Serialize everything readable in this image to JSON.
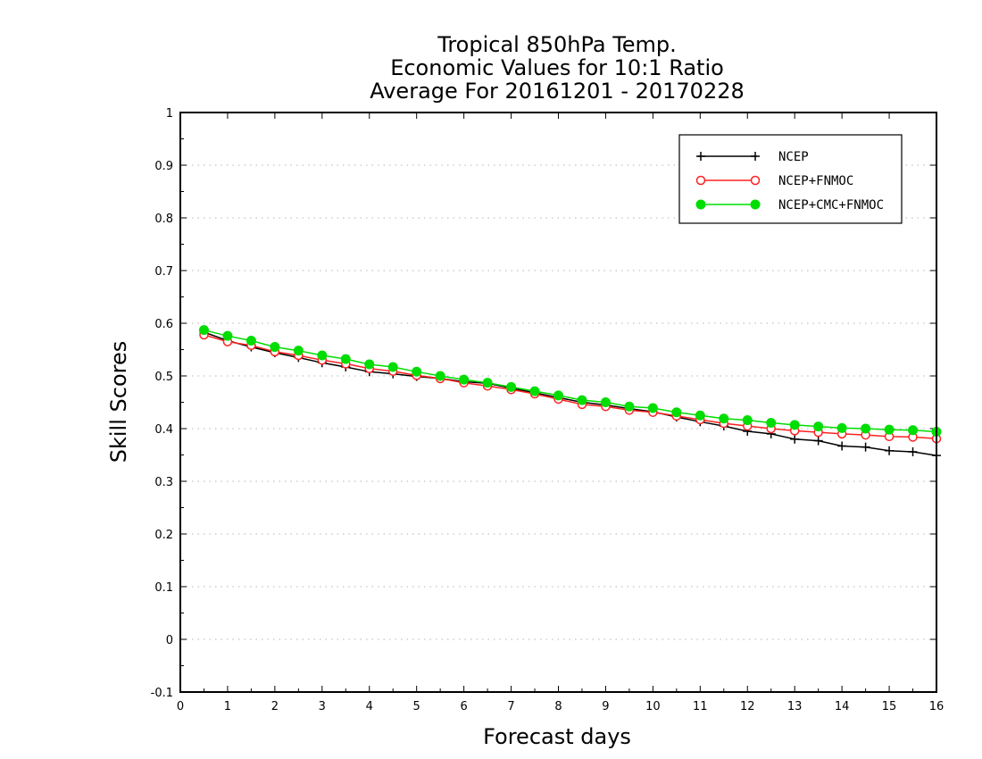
{
  "chart_data": {
    "type": "line",
    "title": [
      "Tropical 850hPa Temp.",
      "Economic Values for 10:1 Ratio",
      "Average For 20161201 - 20170228"
    ],
    "xlabel": "Forecast days",
    "ylabel": "Skill Scores",
    "xlim": [
      0,
      16
    ],
    "ylim": [
      -0.1,
      1
    ],
    "xticks": [
      0,
      1,
      2,
      3,
      4,
      5,
      6,
      7,
      8,
      9,
      10,
      11,
      12,
      13,
      14,
      15,
      16
    ],
    "yticks": [
      -0.1,
      0,
      0.1,
      0.2,
      0.3,
      0.4,
      0.5,
      0.6,
      0.7,
      0.8,
      0.9,
      1
    ],
    "ytick_labels": [
      "-0.1",
      "0",
      "0.1",
      "0.2",
      "0.3",
      "0.4",
      "0.5",
      "0.6",
      "0.7",
      "0.8",
      "0.9",
      "1"
    ],
    "grid": "horizontal dotted",
    "legend_position": "top-right",
    "x": [
      0.5,
      1,
      1.5,
      2,
      2.5,
      3,
      3.5,
      4,
      4.5,
      5,
      5.5,
      6,
      6.5,
      7,
      7.5,
      8,
      8.5,
      9,
      9.5,
      10,
      10.5,
      11,
      11.5,
      12,
      12.5,
      13,
      13.5,
      14,
      14.5,
      15,
      15.5,
      16
    ],
    "series": [
      {
        "name": "NCEP",
        "color": "#000000",
        "marker": "plus",
        "values": [
          0.583,
          0.567,
          0.555,
          0.544,
          0.535,
          0.525,
          0.517,
          0.508,
          0.504,
          0.499,
          0.495,
          0.489,
          0.486,
          0.477,
          0.468,
          0.459,
          0.45,
          0.445,
          0.438,
          0.432,
          0.422,
          0.413,
          0.405,
          0.395,
          0.39,
          0.38,
          0.377,
          0.367,
          0.365,
          0.358,
          0.356,
          0.349
        ]
      },
      {
        "name": "NCEP+FNMOC",
        "color": "#ff2020",
        "marker": "open-circle",
        "values": [
          0.578,
          0.565,
          0.558,
          0.546,
          0.539,
          0.53,
          0.523,
          0.514,
          0.509,
          0.501,
          0.495,
          0.487,
          0.481,
          0.474,
          0.466,
          0.456,
          0.446,
          0.442,
          0.435,
          0.431,
          0.424,
          0.417,
          0.41,
          0.405,
          0.4,
          0.396,
          0.393,
          0.39,
          0.388,
          0.385,
          0.384,
          0.381
        ]
      },
      {
        "name": "NCEP+CMC+FNMOC",
        "color": "#00dd00",
        "marker": "filled-circle",
        "values": [
          0.587,
          0.576,
          0.567,
          0.555,
          0.548,
          0.539,
          0.532,
          0.522,
          0.517,
          0.508,
          0.5,
          0.493,
          0.487,
          0.479,
          0.471,
          0.463,
          0.454,
          0.45,
          0.442,
          0.439,
          0.431,
          0.425,
          0.419,
          0.416,
          0.411,
          0.407,
          0.404,
          0.401,
          0.4,
          0.398,
          0.397,
          0.394
        ]
      }
    ]
  }
}
